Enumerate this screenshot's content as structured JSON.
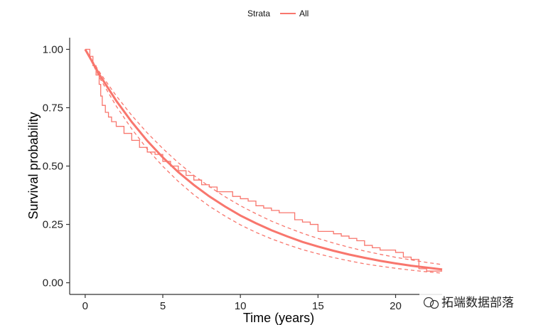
{
  "chart_data": {
    "type": "line",
    "xlabel": "Time (years)",
    "ylabel": "Survival probability",
    "xlim": [
      -1,
      23
    ],
    "ylim": [
      -0.05,
      1.05
    ],
    "xticks": [
      0,
      5,
      10,
      15,
      20
    ],
    "yticks": [
      "0.00",
      "0.25",
      "0.50",
      "0.75",
      "1.00"
    ],
    "ytick_values": [
      0,
      0.25,
      0.5,
      0.75,
      1.0
    ],
    "grid": false,
    "legend": {
      "placement": "top-center",
      "title": "Strata",
      "entries": [
        "All"
      ]
    },
    "color": "#F8766D",
    "series": [
      {
        "style": "kaplan-meier-step",
        "x": [
          0,
          0.3,
          0.5,
          0.7,
          0.9,
          1.0,
          1.1,
          1.3,
          1.5,
          1.7,
          2.0,
          2.5,
          3.0,
          3.5,
          4.0,
          4.5,
          5.0,
          5.5,
          6.0,
          6.5,
          7.0,
          7.5,
          8.0,
          8.5,
          9.0,
          9.5,
          10.0,
          10.5,
          11.0,
          11.5,
          12.0,
          12.5,
          13.0,
          13.5,
          14.0,
          14.5,
          15.0,
          15.5,
          16.0,
          16.5,
          17.0,
          17.5,
          18.0,
          18.5,
          19.0,
          19.5,
          20.0,
          20.5,
          21.0,
          21.5,
          22.0,
          23.0
        ],
        "y": [
          1.0,
          0.97,
          0.93,
          0.89,
          0.85,
          0.8,
          0.76,
          0.73,
          0.71,
          0.69,
          0.67,
          0.64,
          0.61,
          0.58,
          0.56,
          0.55,
          0.52,
          0.5,
          0.48,
          0.46,
          0.44,
          0.42,
          0.41,
          0.39,
          0.39,
          0.37,
          0.36,
          0.35,
          0.33,
          0.32,
          0.31,
          0.3,
          0.3,
          0.27,
          0.26,
          0.25,
          0.22,
          0.22,
          0.21,
          0.2,
          0.19,
          0.18,
          0.16,
          0.15,
          0.14,
          0.14,
          0.13,
          0.11,
          0.1,
          0.06,
          0.05,
          0.05
        ]
      },
      {
        "style": "parametric-fit",
        "x": [
          0,
          1,
          2,
          3,
          4,
          5,
          6,
          7,
          8,
          9,
          10,
          11,
          12,
          13,
          14,
          15,
          16,
          17,
          18,
          19,
          20,
          21,
          22,
          23
        ],
        "y": [
          1.0,
          0.883,
          0.78,
          0.689,
          0.608,
          0.537,
          0.474,
          0.419,
          0.37,
          0.327,
          0.288,
          0.255,
          0.225,
          0.199,
          0.175,
          0.155,
          0.137,
          0.121,
          0.107,
          0.094,
          0.083,
          0.073,
          0.065,
          0.057
        ]
      },
      {
        "style": "confidence-upper",
        "x": [
          0,
          1,
          2,
          3,
          4,
          5,
          6,
          7,
          8,
          9,
          10,
          11,
          12,
          13,
          14,
          15,
          16,
          17,
          18,
          19,
          20,
          21,
          22,
          23
        ],
        "y": [
          1.0,
          0.895,
          0.801,
          0.717,
          0.642,
          0.575,
          0.514,
          0.46,
          0.412,
          0.369,
          0.33,
          0.296,
          0.264,
          0.237,
          0.212,
          0.19,
          0.17,
          0.152,
          0.136,
          0.122,
          0.109,
          0.098,
          0.087,
          0.078
        ]
      },
      {
        "style": "confidence-lower",
        "x": [
          0,
          1,
          2,
          3,
          4,
          5,
          6,
          7,
          8,
          9,
          10,
          11,
          12,
          13,
          14,
          15,
          16,
          17,
          18,
          19,
          20,
          21,
          22,
          23
        ],
        "y": [
          1.0,
          0.87,
          0.757,
          0.659,
          0.573,
          0.499,
          0.434,
          0.377,
          0.328,
          0.286,
          0.248,
          0.216,
          0.188,
          0.164,
          0.142,
          0.124,
          0.108,
          0.094,
          0.081,
          0.071,
          0.062,
          0.054,
          0.047,
          0.041
        ]
      }
    ]
  },
  "watermark": {
    "text": "拓端数据部落",
    "icon": "wechat-icon"
  }
}
